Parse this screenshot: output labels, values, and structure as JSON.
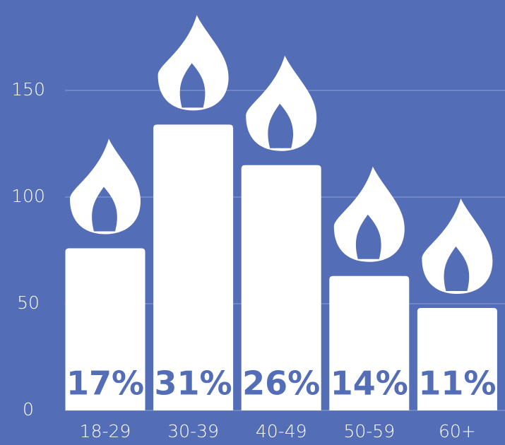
{
  "chart_data": {
    "type": "bar",
    "categories": [
      "18-29",
      "30-39",
      "40-49",
      "50-59",
      "60+"
    ],
    "values": [
      76,
      134,
      115,
      63,
      48
    ],
    "shares": {
      "values": [
        17,
        31,
        26,
        14,
        11
      ],
      "value_labels": [
        "17%",
        "31%",
        "26%",
        "14%",
        "11%"
      ]
    },
    "color": "#ffffff",
    "background": "#536db7",
    "ylim": [
      0,
      150
    ],
    "yticks": [
      0,
      50,
      100,
      150
    ],
    "grid": true
  }
}
